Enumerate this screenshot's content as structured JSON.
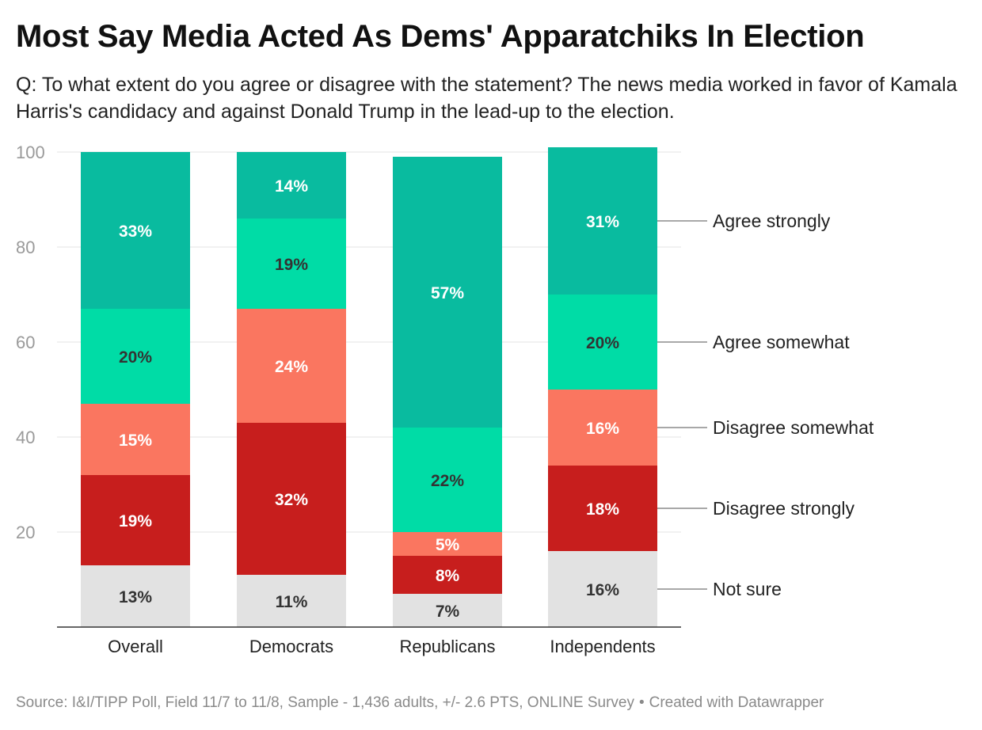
{
  "title": "Most Say Media Acted As Dems' Apparatchiks In Election",
  "subtitle": "Q: To what extent do you agree or disagree with the statement? The news media worked in favor of Kamala Harris's candidacy and against Donald Trump in the lead-up to the election.",
  "footer": {
    "source": "Source: I&I/TIPP Poll, Field 11/7 to 11/8, Sample - 1,436 adults, +/- 2.6 PTS, ONLINE Survey",
    "separator": "•",
    "credit": "Created with Datawrapper"
  },
  "chart_data": {
    "type": "bar",
    "stacked": true,
    "categories": [
      "Overall",
      "Democrats",
      "Republicans",
      "Independents"
    ],
    "series": [
      {
        "name": "Not sure",
        "color": "#e2e2e2",
        "label_color": "#333333",
        "values": [
          13,
          11,
          7,
          16
        ],
        "labels": [
          "13%",
          "11%",
          "7%",
          "16%"
        ]
      },
      {
        "name": "Disagree strongly",
        "color": "#c71e1d",
        "label_color": "#ffffff",
        "values": [
          19,
          32,
          8,
          18
        ],
        "labels": [
          "19%",
          "32%",
          "8%",
          "18%"
        ]
      },
      {
        "name": "Disagree somewhat",
        "color": "#fa7660",
        "label_color": "#ffffff",
        "values": [
          15,
          24,
          5,
          16
        ],
        "labels": [
          "15%",
          "24%",
          "5%",
          "16%"
        ]
      },
      {
        "name": "Agree somewhat",
        "color": "#00dca6",
        "label_color": "#333333",
        "values": [
          20,
          19,
          22,
          20
        ],
        "labels": [
          "20%",
          "19%",
          "22%",
          "20%"
        ]
      },
      {
        "name": "Agree strongly",
        "color": "#09bb9f",
        "label_color": "#ffffff",
        "values": [
          33,
          14,
          57,
          31
        ],
        "labels": [
          "33%",
          "14%",
          "57%",
          "31%"
        ]
      }
    ],
    "ylim": [
      0,
      100
    ],
    "yticks": [
      20,
      40,
      60,
      80,
      100
    ],
    "ytick_labels": [
      "20",
      "40",
      "60",
      "80",
      "100"
    ],
    "legend_position": "right",
    "legend_column": "Independents",
    "grid": true,
    "xlabel": "",
    "ylabel": ""
  }
}
